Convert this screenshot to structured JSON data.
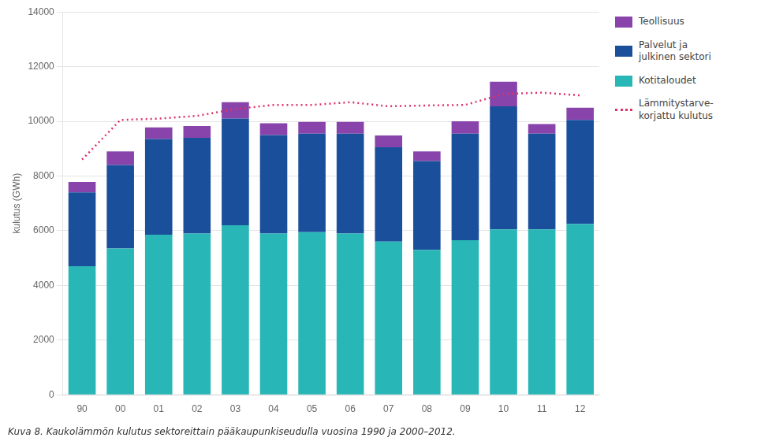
{
  "chart_data": {
    "type": "bar",
    "stacked": true,
    "caption": "Kuva 8. Kaukolämmön kulutus sektoreittain pääkaupunkiseudulla vuosina 1990 ja 2000–2012.",
    "ylabel": "kulutus (GWh)",
    "categories": [
      "90",
      "00",
      "01",
      "02",
      "03",
      "04",
      "05",
      "06",
      "07",
      "08",
      "09",
      "10",
      "11",
      "12"
    ],
    "series": [
      {
        "name": "Kotitaloudet",
        "color": "#29b6b6",
        "type": "bar",
        "values": [
          4700,
          5350,
          5850,
          5900,
          6200,
          5900,
          5950,
          5900,
          5600,
          5300,
          5650,
          6050,
          6050,
          6250
        ]
      },
      {
        "name": "Palvelut ja\njulkinen sektori",
        "color": "#1a4f9c",
        "type": "bar",
        "values": [
          2700,
          3050,
          3500,
          3500,
          3900,
          3600,
          3600,
          3650,
          3450,
          3250,
          3900,
          4500,
          3500,
          3800
        ]
      },
      {
        "name": "Teollisuus",
        "color": "#8844aa",
        "type": "bar",
        "values": [
          380,
          500,
          430,
          430,
          600,
          430,
          430,
          430,
          430,
          350,
          450,
          900,
          350,
          450
        ]
      },
      {
        "name": "Lämmitystarve-\nkorjattu kulutus",
        "color": "#dd3366",
        "type": "line",
        "line_style": "dotted",
        "values": [
          8600,
          10050,
          10100,
          10200,
          10450,
          10600,
          10600,
          10700,
          10550,
          10580,
          10600,
          11000,
          11050,
          10950
        ]
      }
    ],
    "ylim": [
      0,
      14000
    ],
    "yticks": [
      0,
      2000,
      4000,
      6000,
      8000,
      10000,
      12000,
      14000
    ],
    "grid": true,
    "legend": "right"
  }
}
